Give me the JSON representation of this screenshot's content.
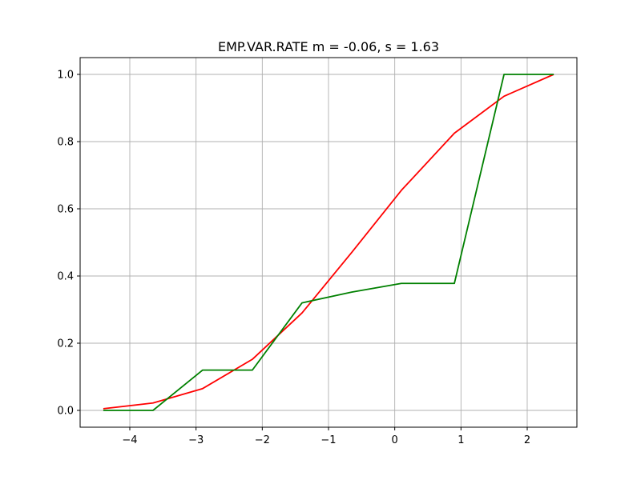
{
  "chart_data": {
    "type": "line",
    "title": "EMP.VAR.RATE  m = -0.06,  s = 1.63",
    "xlabel": "",
    "ylabel": "",
    "xlim": [
      -4.75,
      2.75
    ],
    "ylim": [
      -0.05,
      1.05
    ],
    "grid": true,
    "x_ticks": [
      -4,
      -3,
      -2,
      -1,
      0,
      1,
      2
    ],
    "x_tick_labels": [
      "−4",
      "−3",
      "−2",
      "−1",
      "0",
      "1",
      "2"
    ],
    "y_ticks": [
      0.0,
      0.2,
      0.4,
      0.6,
      0.8,
      1.0
    ],
    "y_tick_labels": [
      "0.0",
      "0.2",
      "0.4",
      "0.6",
      "0.8",
      "1.0"
    ],
    "series": [
      {
        "color": "#ff0000",
        "x": [
          -4.4,
          -3.65,
          -2.9,
          -2.15,
          -1.4,
          -0.65,
          0.1,
          0.9,
          1.65,
          2.4
        ],
        "y": [
          0.005,
          0.022,
          0.065,
          0.152,
          0.29,
          0.47,
          0.655,
          0.825,
          0.935,
          1.0
        ]
      },
      {
        "color": "#008000",
        "x": [
          -4.4,
          -3.65,
          -2.9,
          -2.15,
          -1.4,
          -0.65,
          0.1,
          0.9,
          1.65,
          2.4
        ],
        "y": [
          0.0,
          0.0,
          0.12,
          0.12,
          0.32,
          0.352,
          0.378,
          0.378,
          1.0,
          1.0
        ]
      }
    ]
  }
}
